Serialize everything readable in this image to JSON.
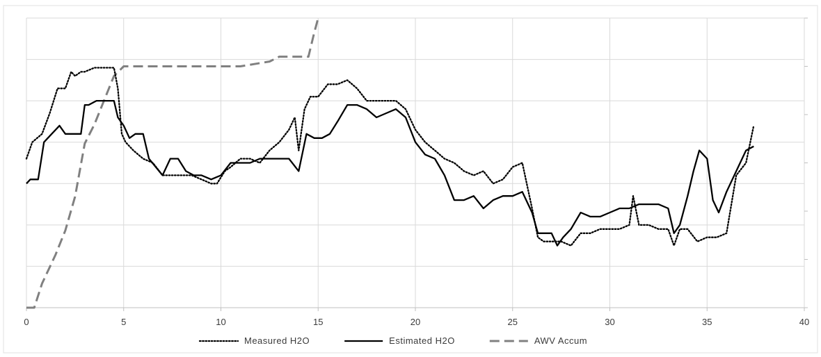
{
  "chart_data": {
    "type": "line",
    "title": "",
    "xlabel": "",
    "ylabel": "",
    "xlim": [
      0,
      40
    ],
    "x_ticks": [
      "0",
      "5",
      "10",
      "15",
      "20",
      "25",
      "30",
      "35",
      "40"
    ],
    "y_primary_range": [
      0,
      7
    ],
    "y_secondary_range": [
      0,
      6
    ],
    "grid": {
      "horizontal": true,
      "vertical": true
    },
    "legend_position": "bottom",
    "series": [
      {
        "name": "Measured H2O",
        "style": "dotted",
        "color": "#000000",
        "axis": "primary",
        "x": [
          0,
          0.3,
          0.8,
          1.2,
          1.6,
          2.0,
          2.3,
          2.5,
          2.8,
          3.0,
          3.5,
          4.0,
          4.5,
          4.7,
          4.9,
          5.1,
          5.5,
          6.0,
          6.5,
          7.0,
          7.5,
          8.0,
          8.5,
          9.0,
          9.5,
          9.8,
          10.2,
          10.5,
          11.0,
          11.5,
          12.0,
          12.5,
          13.0,
          13.5,
          13.8,
          14.0,
          14.3,
          14.6,
          15.0,
          15.5,
          16.0,
          16.5,
          17.0,
          17.5,
          18.0,
          18.5,
          19.0,
          19.5,
          20.0,
          20.5,
          21.0,
          21.5,
          22.0,
          22.5,
          23.0,
          23.5,
          24.0,
          24.5,
          25.0,
          25.5,
          26.0,
          26.3,
          26.6,
          27.0,
          27.5,
          28.0,
          28.5,
          29.0,
          29.5,
          30.0,
          30.5,
          31.0,
          31.2,
          31.5,
          32.0,
          32.5,
          33.0,
          33.3,
          33.6,
          34.0,
          34.5,
          35.0,
          35.5,
          36.0,
          36.5,
          37.0,
          37.4
        ],
        "y": [
          3.6,
          4.0,
          4.2,
          4.7,
          5.3,
          5.3,
          5.7,
          5.6,
          5.7,
          5.7,
          5.8,
          5.8,
          5.8,
          5.3,
          4.2,
          4.0,
          3.8,
          3.6,
          3.5,
          3.2,
          3.2,
          3.2,
          3.2,
          3.1,
          3.0,
          3.0,
          3.3,
          3.4,
          3.6,
          3.6,
          3.5,
          3.8,
          4.0,
          4.3,
          4.6,
          3.8,
          4.8,
          5.1,
          5.1,
          5.4,
          5.4,
          5.5,
          5.3,
          5.0,
          5.0,
          5.0,
          5.0,
          4.8,
          4.3,
          4.0,
          3.8,
          3.6,
          3.5,
          3.3,
          3.2,
          3.3,
          3.0,
          3.1,
          3.4,
          3.5,
          2.4,
          1.7,
          1.6,
          1.6,
          1.6,
          1.5,
          1.8,
          1.8,
          1.9,
          1.9,
          1.9,
          2.0,
          2.7,
          2.0,
          2.0,
          1.9,
          1.9,
          1.5,
          1.9,
          1.9,
          1.6,
          1.7,
          1.7,
          1.8,
          3.2,
          3.5,
          4.4
        ]
      },
      {
        "name": "Estimated H2O",
        "style": "solid",
        "color": "#000000",
        "axis": "primary",
        "x": [
          0,
          0.2,
          0.6,
          0.9,
          1.3,
          1.7,
          2.0,
          2.4,
          2.8,
          3.0,
          3.2,
          3.6,
          4.0,
          4.5,
          4.7,
          5.0,
          5.3,
          5.6,
          6.0,
          6.3,
          7.0,
          7.4,
          7.8,
          8.2,
          8.6,
          9.0,
          9.5,
          10.0,
          10.5,
          11.0,
          11.5,
          12.0,
          12.5,
          13.0,
          13.5,
          14.0,
          14.4,
          14.8,
          15.2,
          15.6,
          16.0,
          16.5,
          17.0,
          17.5,
          18.0,
          18.5,
          19.0,
          19.5,
          20.0,
          20.5,
          21.0,
          21.5,
          22.0,
          22.5,
          23.0,
          23.5,
          24.0,
          24.5,
          25.0,
          25.5,
          26.0,
          26.3,
          26.6,
          27.0,
          27.3,
          27.6,
          28.0,
          28.5,
          29.0,
          29.5,
          30.0,
          30.5,
          31.0,
          31.5,
          32.0,
          32.5,
          33.0,
          33.3,
          33.6,
          34.0,
          34.3,
          34.6,
          35.0,
          35.3,
          35.6,
          36.0,
          36.5,
          37.0,
          37.4
        ],
        "y": [
          3.0,
          3.1,
          3.1,
          4.0,
          4.2,
          4.4,
          4.2,
          4.2,
          4.2,
          4.9,
          4.9,
          5.0,
          5.0,
          5.0,
          4.6,
          4.4,
          4.1,
          4.2,
          4.2,
          3.6,
          3.2,
          3.6,
          3.6,
          3.3,
          3.2,
          3.2,
          3.1,
          3.2,
          3.5,
          3.5,
          3.5,
          3.6,
          3.6,
          3.6,
          3.6,
          3.3,
          4.2,
          4.1,
          4.1,
          4.2,
          4.5,
          4.9,
          4.9,
          4.8,
          4.6,
          4.7,
          4.8,
          4.6,
          4.0,
          3.7,
          3.6,
          3.2,
          2.6,
          2.6,
          2.7,
          2.4,
          2.6,
          2.7,
          2.7,
          2.8,
          2.3,
          1.8,
          1.8,
          1.8,
          1.5,
          1.7,
          1.9,
          2.3,
          2.2,
          2.2,
          2.3,
          2.4,
          2.4,
          2.5,
          2.5,
          2.5,
          2.4,
          1.8,
          2.0,
          2.7,
          3.3,
          3.8,
          3.6,
          2.6,
          2.3,
          2.8,
          3.3,
          3.8,
          3.9
        ]
      },
      {
        "name": "AWV Accum",
        "style": "dashed",
        "color": "#808080",
        "axis": "secondary",
        "x": [
          0,
          0.4,
          0.8,
          1.5,
          2.0,
          2.5,
          3.0,
          3.5,
          4.0,
          4.5,
          5.0,
          6.0,
          8.0,
          10.0,
          11.0,
          12.5,
          13.0,
          14.0,
          14.5,
          14.8,
          15.0
        ],
        "y": [
          0,
          0,
          0.5,
          1.1,
          1.6,
          2.3,
          3.4,
          3.8,
          4.3,
          4.8,
          5.0,
          5.0,
          5.0,
          5.0,
          5.0,
          5.1,
          5.2,
          5.2,
          5.2,
          5.7,
          6.0
        ]
      }
    ]
  }
}
